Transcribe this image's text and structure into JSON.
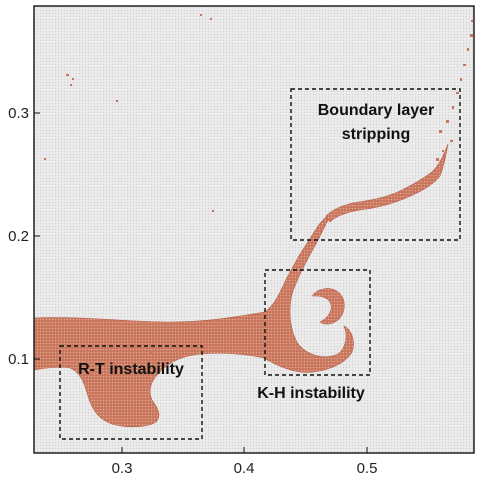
{
  "figure": {
    "axes": {
      "x": {
        "range": [
          0.235,
          0.585
        ],
        "ticks": [
          "0.3",
          "0.4",
          "0.5"
        ],
        "tick_values": [
          0.3,
          0.4,
          0.5
        ]
      },
      "y": {
        "range": [
          0.015,
          0.375
        ],
        "ticks": [
          "0.1",
          "0.2",
          "0.3"
        ],
        "tick_values": [
          0.1,
          0.2,
          0.3
        ]
      }
    },
    "colors": {
      "fluid": "#c8755c",
      "background": "#e9e9e9",
      "frame": "#111111",
      "annotation": "#111111"
    },
    "annotations": [
      {
        "id": "boundary-layer",
        "lines": [
          "Boundary layer",
          "stripping"
        ],
        "region_x": [
          0.44,
          0.58
        ],
        "region_y": [
          0.2,
          0.32
        ]
      },
      {
        "id": "kh",
        "lines": [
          "K-H instability"
        ],
        "region_x": [
          0.42,
          0.51
        ],
        "region_y": [
          0.088,
          0.172
        ]
      },
      {
        "id": "rt",
        "lines": [
          "R-T instability"
        ],
        "region_x": [
          0.25,
          0.365
        ],
        "region_y": [
          0.036,
          0.111
        ]
      }
    ]
  }
}
